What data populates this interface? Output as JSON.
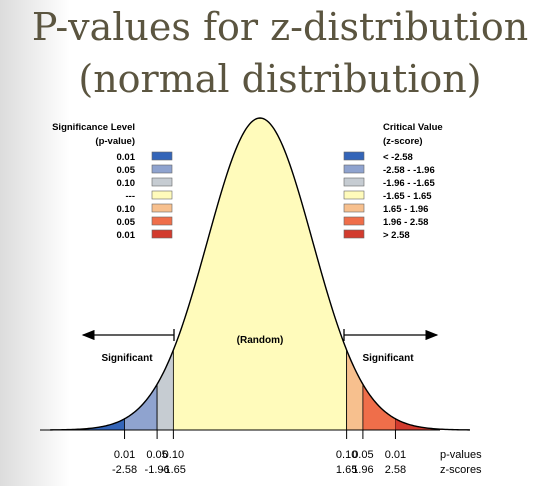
{
  "title": {
    "line1": "P-values for z-distribution",
    "line2": "(normal distribution)"
  },
  "legend_left": {
    "heading1": "Significance Level",
    "heading2": "(p-value)",
    "items": [
      "0.01",
      "0.05",
      "0.10",
      "---",
      "0.10",
      "0.05",
      "0.01"
    ]
  },
  "legend_right": {
    "heading1": "Critical Value",
    "heading2": "(z-score)",
    "items": [
      "< -2.58",
      "-2.58 - -1.96",
      "-1.96 - -1.65",
      "-1.65 - 1.65",
      "1.65 - 1.96",
      "1.96 - 2.58",
      "> 2.58"
    ]
  },
  "colors": {
    "swatches": [
      "#3465b8",
      "#8fa3cf",
      "#c6ccd2",
      "#fffbbb",
      "#f7c08e",
      "#ef6e4a",
      "#d23b2e"
    ],
    "curve_fill": "#fffbbb",
    "title": "#5b5540"
  },
  "regions": {
    "center": "(Random)",
    "left": "Significant",
    "right": "Significant"
  },
  "axis": {
    "p_values": [
      "0.01",
      "0.05",
      "0.10",
      "0.10",
      "0.05",
      "0.01"
    ],
    "z_scores": [
      "-2.58",
      "-1.96",
      "-1.65",
      "1.65",
      "1.96",
      "2.58"
    ],
    "p_row_label": "p-values",
    "z_row_label": "z-scores"
  }
}
